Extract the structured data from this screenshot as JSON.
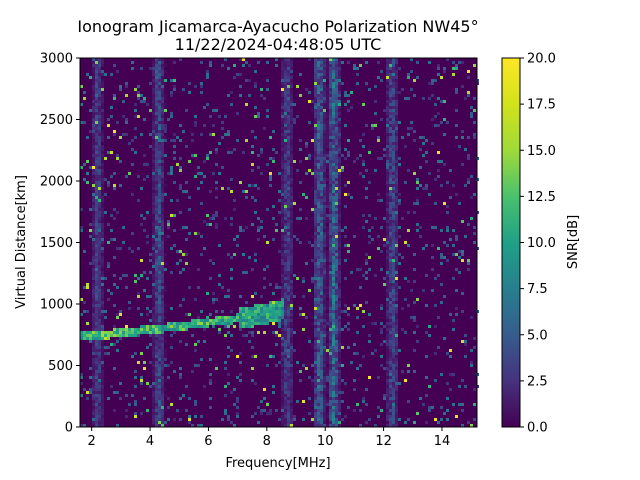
{
  "chart_data": {
    "type": "heatmap",
    "title": "Ionogram Jicamarca-Ayacucho Polarization NW45°",
    "subtitle": "11/22/2024-04:48:05 UTC",
    "xlabel": "Frequency[MHz]",
    "ylabel": "Virtual Distance[km]",
    "xlim": [
      1.6,
      15.2
    ],
    "ylim": [
      0,
      3000
    ],
    "x_ticks": [
      2,
      4,
      6,
      8,
      10,
      12,
      14
    ],
    "y_ticks": [
      0,
      500,
      1000,
      1500,
      2000,
      2500,
      3000
    ],
    "colorbar": {
      "label": "SNR[dB]",
      "range": [
        0.0,
        20.0
      ],
      "ticks": [
        0.0,
        2.5,
        5.0,
        7.5,
        10.0,
        12.5,
        15.0,
        17.5,
        20.0
      ],
      "tick_labels": [
        "0.0",
        "2.5",
        "5.0",
        "7.5",
        "10.0",
        "12.5",
        "15.0",
        "17.5",
        "20.0"
      ],
      "colormap": "viridis"
    },
    "background_snr": 0.5,
    "vertical_noise_bands_mhz": [
      {
        "f": 2.2,
        "snr": 5
      },
      {
        "f": 4.3,
        "snr": 6
      },
      {
        "f": 8.7,
        "snr": 5
      },
      {
        "f": 9.8,
        "snr": 8
      },
      {
        "f": 10.3,
        "snr": 9
      },
      {
        "f": 12.3,
        "snr": 6
      }
    ],
    "echo_trace": [
      {
        "f": 1.6,
        "range_km": 740,
        "snr": 14
      },
      {
        "f": 2.5,
        "range_km": 750,
        "snr": 17
      },
      {
        "f": 3.2,
        "range_km": 770,
        "snr": 16
      },
      {
        "f": 4.0,
        "range_km": 790,
        "snr": 15
      },
      {
        "f": 5.0,
        "range_km": 820,
        "snr": 16
      },
      {
        "f": 6.0,
        "range_km": 850,
        "snr": 15
      },
      {
        "f": 7.0,
        "range_km": 880,
        "snr": 14
      },
      {
        "f": 8.0,
        "range_km": 920,
        "snr": 13
      },
      {
        "f": 8.6,
        "range_km": 960,
        "snr": 12
      }
    ],
    "grid": false
  }
}
